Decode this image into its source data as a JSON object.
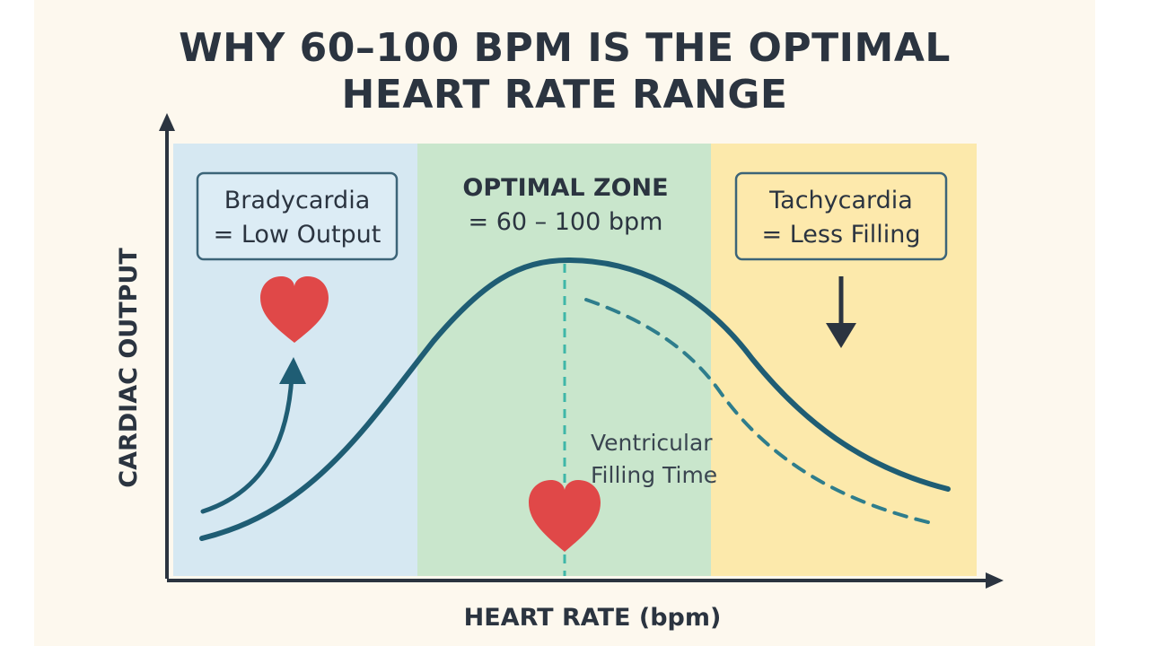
{
  "title": {
    "line1": "WHY 60–100 BPM IS THE OPTIMAL",
    "line2": "HEART RATE RANGE"
  },
  "zones": {
    "bradycardia": {
      "line1": "Bradycardia",
      "line2": "= Low Output",
      "color": "#d6e8f2"
    },
    "optimal": {
      "line1": "OPTIMAL ZONE",
      "line2": "= 60 – 100 bpm",
      "color": "#c9e6cc"
    },
    "tachycardia": {
      "line1": "Tachycardia",
      "line2": "= Less Filling",
      "color": "#fce9ab"
    }
  },
  "axes": {
    "x_label": "HEART RATE (bpm)",
    "y_label": "CARDIAC OUTPUT"
  },
  "annotation": {
    "line1": "Ventricular",
    "line2": "Filling Time"
  },
  "colors": {
    "curve": "#1f5d74",
    "dashed": "#2e7d8c",
    "heart": "#e04848",
    "axis": "#2b3440",
    "box_border": "#3c6478"
  },
  "icons": [
    "heart-icon",
    "up-arrow-icon",
    "down-arrow-icon"
  ]
}
